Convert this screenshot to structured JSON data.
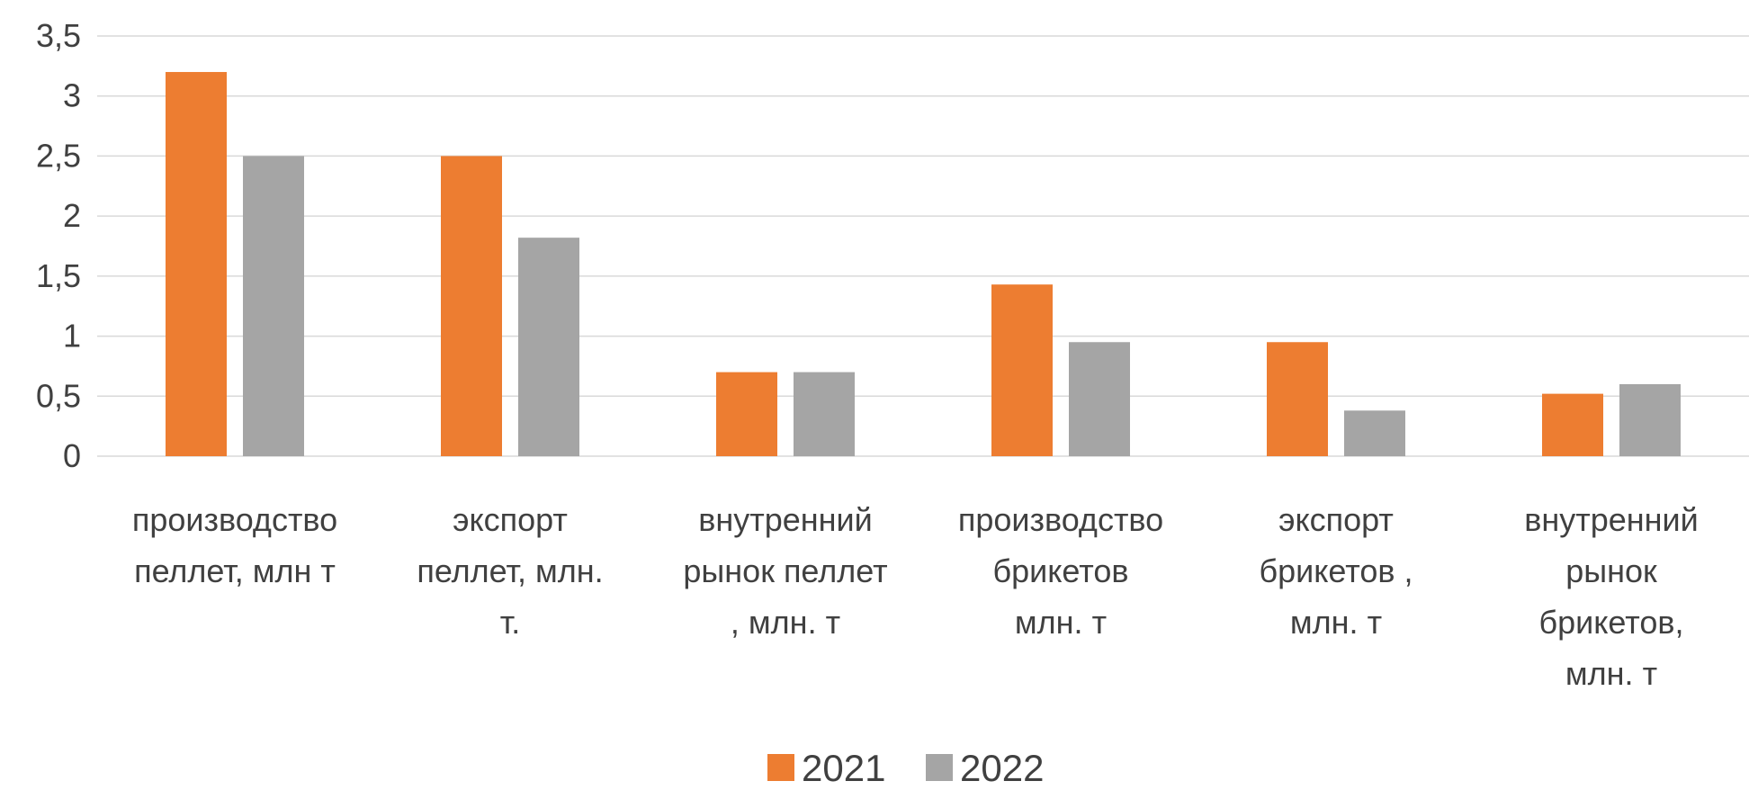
{
  "chart_data": {
    "type": "bar",
    "title": "",
    "xlabel": "",
    "ylabel": "",
    "ylim": [
      0,
      3.5
    ],
    "ytick_values": [
      0,
      0.5,
      1,
      1.5,
      2,
      2.5,
      3,
      3.5
    ],
    "ytick_labels": [
      "0",
      "0,5",
      "1",
      "1,5",
      "2",
      "2,5",
      "3",
      "3,5"
    ],
    "grid": true,
    "legend_position": "bottom",
    "categories": [
      [
        "производство",
        "пеллет, млн т"
      ],
      [
        "экспорт",
        "пеллет, млн.",
        "т."
      ],
      [
        "внутренний",
        "рынок пеллет",
        ", млн. т"
      ],
      [
        "производство",
        "брикетов",
        "млн. т"
      ],
      [
        "экспорт",
        "брикетов ,",
        "млн. т"
      ],
      [
        "внутренний",
        "рынок",
        "брикетов,",
        "млн. т"
      ]
    ],
    "series": [
      {
        "name": "2021",
        "color": "#ED7D31",
        "values": [
          3.2,
          2.5,
          0.7,
          1.43,
          0.95,
          0.52
        ]
      },
      {
        "name": "2022",
        "color": "#A5A5A5",
        "values": [
          2.5,
          1.82,
          0.7,
          0.95,
          0.38,
          0.6
        ]
      }
    ],
    "gridline_color": "#D9D9D9"
  }
}
